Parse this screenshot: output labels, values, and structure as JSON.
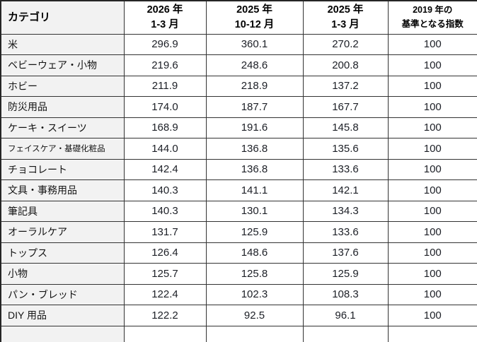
{
  "table": {
    "headers": [
      {
        "line1": "カテゴリ",
        "line2": ""
      },
      {
        "line1": "2026 年",
        "line2": "1-3 月"
      },
      {
        "line1": "2025 年",
        "line2": "10-12 月"
      },
      {
        "line1": "2025 年",
        "line2": "1-3 月"
      },
      {
        "line1": "2019 年の",
        "line2": "基準となる指数"
      }
    ],
    "rows": [
      {
        "category": "米",
        "values": [
          "296.9",
          "360.1",
          "270.2",
          "100"
        ]
      },
      {
        "category": "ベビーウェア・小物",
        "values": [
          "219.6",
          "248.6",
          "200.8",
          "100"
        ]
      },
      {
        "category": "ホビー",
        "values": [
          "211.9",
          "218.9",
          "137.2",
          "100"
        ]
      },
      {
        "category": "防災用品",
        "values": [
          "174.0",
          "187.7",
          "167.7",
          "100"
        ]
      },
      {
        "category": "ケーキ・スイーツ",
        "values": [
          "168.9",
          "191.6",
          "145.8",
          "100"
        ]
      },
      {
        "category": "フェイスケア・基礎化粧品",
        "values": [
          "144.0",
          "136.8",
          "135.6",
          "100"
        ]
      },
      {
        "category": "チョコレート",
        "values": [
          "142.4",
          "136.8",
          "133.6",
          "100"
        ]
      },
      {
        "category": "文具・事務用品",
        "values": [
          "140.3",
          "141.1",
          "142.1",
          "100"
        ]
      },
      {
        "category": "筆記具",
        "values": [
          "140.3",
          "130.1",
          "134.3",
          "100"
        ]
      },
      {
        "category": "オーラルケア",
        "values": [
          "131.7",
          "125.9",
          "133.6",
          "100"
        ]
      },
      {
        "category": "トップス",
        "values": [
          "126.4",
          "148.6",
          "137.6",
          "100"
        ]
      },
      {
        "category": "小物",
        "values": [
          "125.7",
          "125.8",
          "125.9",
          "100"
        ]
      },
      {
        "category": "パン・ブレッド",
        "values": [
          "122.4",
          "102.3",
          "108.3",
          "100"
        ]
      },
      {
        "category": "DIY 用品",
        "values": [
          "122.2",
          "92.5",
          "96.1",
          "100"
        ]
      }
    ]
  },
  "colors": {
    "grid_border": "#333333",
    "outer_border": "#262626",
    "category_column_bg": "#f2f2f2",
    "cell_bg": "#ffffff",
    "text": "#1c1f26"
  },
  "chart_data": {
    "type": "table",
    "title": "",
    "columns": [
      "カテゴリ",
      "2026 年 1-3 月",
      "2025 年 10-12 月",
      "2025 年 1-3 月",
      "2019 年の基準となる指数"
    ],
    "rows": [
      [
        "米",
        296.9,
        360.1,
        270.2,
        100
      ],
      [
        "ベビーウェア・小物",
        219.6,
        248.6,
        200.8,
        100
      ],
      [
        "ホビー",
        211.9,
        218.9,
        137.2,
        100
      ],
      [
        "防災用品",
        174.0,
        187.7,
        167.7,
        100
      ],
      [
        "ケーキ・スイーツ",
        168.9,
        191.6,
        145.8,
        100
      ],
      [
        "フェイスケア・基礎化粧品",
        144.0,
        136.8,
        135.6,
        100
      ],
      [
        "チョコレート",
        142.4,
        136.8,
        133.6,
        100
      ],
      [
        "文具・事務用品",
        140.3,
        141.1,
        142.1,
        100
      ],
      [
        "筆記具",
        140.3,
        130.1,
        134.3,
        100
      ],
      [
        "オーラルケア",
        131.7,
        125.9,
        133.6,
        100
      ],
      [
        "トップス",
        126.4,
        148.6,
        137.6,
        100
      ],
      [
        "小物",
        125.7,
        125.8,
        125.9,
        100
      ],
      [
        "パン・ブレッド",
        122.4,
        102.3,
        108.3,
        100
      ],
      [
        "DIY 用品",
        122.2,
        92.5,
        96.1,
        100
      ]
    ]
  }
}
